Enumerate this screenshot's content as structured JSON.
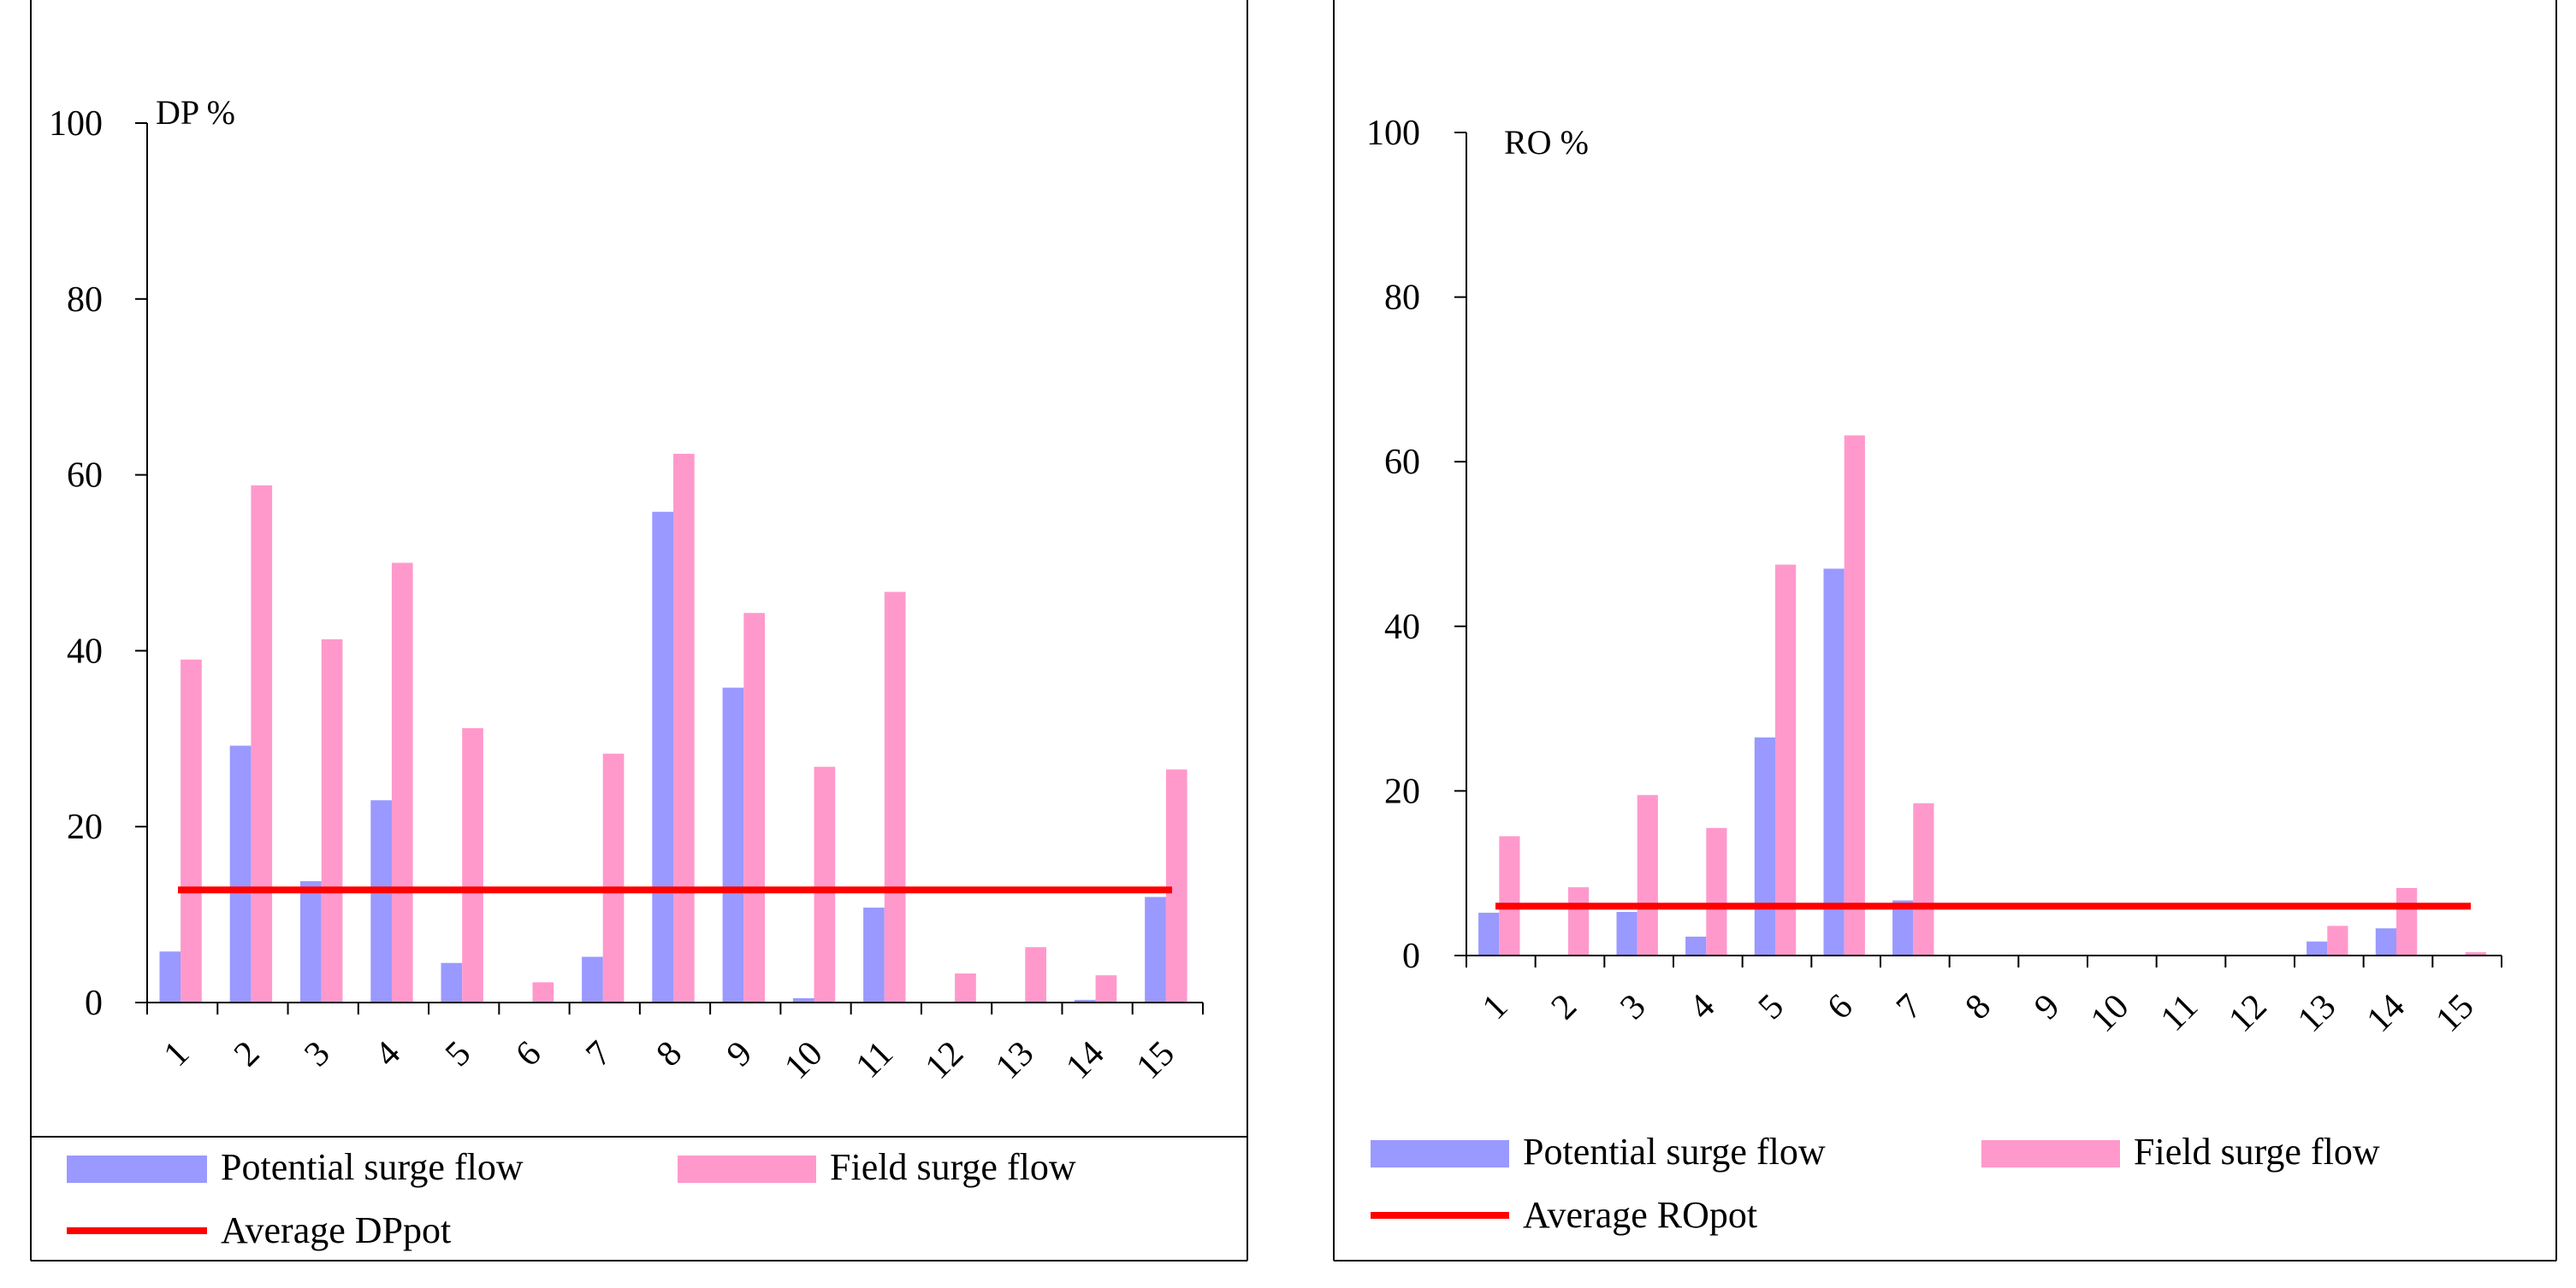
{
  "chart_data": [
    {
      "type": "bar",
      "ylabel": "DP %",
      "ylim": [
        0,
        100
      ],
      "yticks": [
        "0",
        "20",
        "40",
        "60",
        "80",
        "100"
      ],
      "categories": [
        "1",
        "2",
        "3",
        "4",
        "5",
        "6",
        "7",
        "8",
        "9",
        "10",
        "11",
        "12",
        "13",
        "14",
        "15"
      ],
      "series": [
        {
          "name": "Potential surge flow",
          "color": "#9999ff",
          "values": [
            5.8,
            29.2,
            13.8,
            23.0,
            4.5,
            0,
            5.2,
            55.8,
            35.8,
            0.5,
            10.8,
            0,
            0,
            0.3,
            12.0
          ]
        },
        {
          "name": "Field surge flow",
          "color": "#ff99cc",
          "values": [
            39.0,
            58.8,
            41.3,
            50.0,
            31.2,
            2.3,
            28.3,
            62.4,
            44.3,
            26.8,
            46.7,
            3.3,
            6.3,
            3.1,
            26.5
          ]
        }
      ],
      "average": {
        "name": "Average DPpot",
        "value": 12.8,
        "color": "#ff0000"
      }
    },
    {
      "type": "bar",
      "ylabel": "RO %",
      "ylim": [
        0,
        100
      ],
      "yticks": [
        "0",
        "20",
        "40",
        "60",
        "80",
        "100"
      ],
      "categories": [
        "1",
        "2",
        "3",
        "4",
        "5",
        "6",
        "7",
        "8",
        "9",
        "10",
        "11",
        "12",
        "13",
        "14",
        "15"
      ],
      "series": [
        {
          "name": "Potential surge flow",
          "color": "#9999ff",
          "values": [
            5.2,
            0,
            5.3,
            2.3,
            26.5,
            47.0,
            6.7,
            0,
            0,
            0,
            0,
            0,
            1.7,
            3.3,
            0
          ]
        },
        {
          "name": "Field surge flow",
          "color": "#ff99cc",
          "values": [
            14.5,
            8.3,
            19.5,
            15.5,
            47.5,
            63.2,
            18.5,
            0,
            0,
            0,
            0,
            0,
            3.6,
            8.2,
            0.4
          ]
        }
      ],
      "average": {
        "name": "Average ROpot",
        "value": 6.0,
        "color": "#ff0000"
      }
    }
  ]
}
